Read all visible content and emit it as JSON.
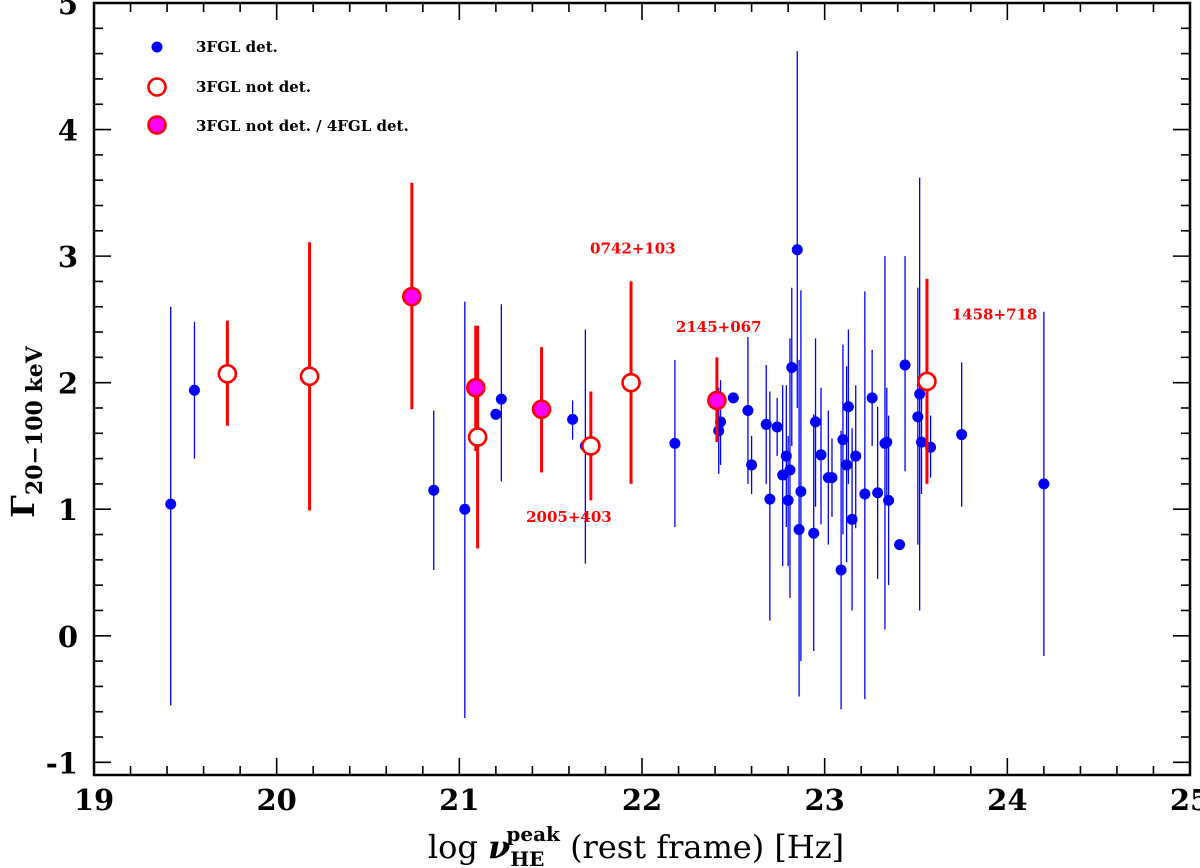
{
  "chart_data": {
    "type": "scatter",
    "xlabel": "log ν_HE^peak (rest frame) [Hz]",
    "xlabel_parts": {
      "prefix": "log ",
      "symbol": "ν",
      "sub": "HE",
      "sup": "peak",
      "suffix": " (rest frame) [Hz]"
    },
    "ylabel": "Γ20−100 keV",
    "ylabel_parts": {
      "symbol": "Γ",
      "sub": "20−100 keV"
    },
    "xlim": [
      19,
      25
    ],
    "ylim": [
      -1.1,
      5.0
    ],
    "x_ticks": [
      19,
      20,
      21,
      22,
      23,
      24,
      25
    ],
    "x_tick_labels": [
      "19",
      "20",
      "21",
      "22",
      "23",
      "24",
      "25"
    ],
    "y_ticks": [
      -1,
      0,
      1,
      2,
      3,
      4,
      5
    ],
    "y_tick_labels": [
      "-1",
      "0",
      "1",
      "2",
      "3",
      "4",
      "5"
    ],
    "legend": {
      "placement": "top-left",
      "entries": [
        {
          "label": "3FGL det.",
          "series": "det"
        },
        {
          "label": "3FGL not det.",
          "series": "notdet"
        },
        {
          "label": "3FGL not det. / 4FGL det.",
          "series": "notdet4fgl"
        }
      ]
    },
    "annotations": [
      {
        "text": "0742+103",
        "x": 21.95,
        "y": 3.02
      },
      {
        "text": "2145+067",
        "x": 22.42,
        "y": 2.4
      },
      {
        "text": "1458+718",
        "x": 23.93,
        "y": 2.5
      },
      {
        "text": "2005+403",
        "x": 21.6,
        "y": 0.9
      }
    ],
    "series": [
      {
        "name": "3FGL det.",
        "key": "det",
        "color": "#0000ff",
        "points": [
          {
            "x": 19.42,
            "y": 1.04,
            "lo": -0.55,
            "hi": 2.6
          },
          {
            "x": 19.55,
            "y": 1.94,
            "lo": 1.4,
            "hi": 2.48
          },
          {
            "x": 20.86,
            "y": 1.15,
            "lo": 0.52,
            "hi": 1.78
          },
          {
            "x": 21.03,
            "y": 1.0,
            "lo": -0.65,
            "hi": 2.64
          },
          {
            "x": 21.2,
            "y": 1.75,
            "lo": 1.72,
            "hi": 1.78
          },
          {
            "x": 21.23,
            "y": 1.87,
            "lo": 1.22,
            "hi": 2.62
          },
          {
            "x": 21.62,
            "y": 1.71,
            "lo": 1.55,
            "hi": 1.86
          },
          {
            "x": 21.69,
            "y": 1.5,
            "lo": 0.57,
            "hi": 2.42
          },
          {
            "x": 22.18,
            "y": 1.52,
            "lo": 0.86,
            "hi": 2.18
          },
          {
            "x": 22.42,
            "y": 1.62,
            "lo": 1.28,
            "hi": 1.96
          },
          {
            "x": 22.43,
            "y": 1.69,
            "lo": 1.35,
            "hi": 2.02
          },
          {
            "x": 22.5,
            "y": 1.88,
            "lo": 1.84,
            "hi": 1.92
          },
          {
            "x": 22.58,
            "y": 1.78,
            "lo": 1.2,
            "hi": 2.36
          },
          {
            "x": 22.6,
            "y": 1.35,
            "lo": 1.12,
            "hi": 1.58
          },
          {
            "x": 22.68,
            "y": 1.67,
            "lo": 1.2,
            "hi": 2.14
          },
          {
            "x": 22.7,
            "y": 1.08,
            "lo": 0.12,
            "hi": 1.93
          },
          {
            "x": 22.74,
            "y": 1.65,
            "lo": 1.42,
            "hi": 1.88
          },
          {
            "x": 22.77,
            "y": 1.27,
            "lo": 0.55,
            "hi": 1.98
          },
          {
            "x": 22.79,
            "y": 1.42,
            "lo": 0.86,
            "hi": 1.98
          },
          {
            "x": 22.8,
            "y": 1.07,
            "lo": 0.55,
            "hi": 1.58
          },
          {
            "x": 22.81,
            "y": 1.31,
            "lo": 0.3,
            "hi": 2.35
          },
          {
            "x": 22.82,
            "y": 2.12,
            "lo": 1.5,
            "hi": 2.75
          },
          {
            "x": 22.85,
            "y": 3.05,
            "lo": 1.8,
            "hi": 4.62
          },
          {
            "x": 22.86,
            "y": 0.84,
            "lo": -0.48,
            "hi": 2.18
          },
          {
            "x": 22.87,
            "y": 1.14,
            "lo": -0.2,
            "hi": 2.73
          },
          {
            "x": 22.94,
            "y": 0.81,
            "lo": -0.12,
            "hi": 1.75
          },
          {
            "x": 22.95,
            "y": 1.69,
            "lo": 1.02,
            "hi": 2.35
          },
          {
            "x": 22.98,
            "y": 1.43,
            "lo": 0.88,
            "hi": 1.96
          },
          {
            "x": 23.02,
            "y": 1.25,
            "lo": 0.72,
            "hi": 1.78
          },
          {
            "x": 23.04,
            "y": 1.25,
            "lo": 0.94,
            "hi": 1.56
          },
          {
            "x": 23.09,
            "y": 0.52,
            "lo": -0.58,
            "hi": 1.62
          },
          {
            "x": 23.1,
            "y": 1.55,
            "lo": 0.8,
            "hi": 2.3
          },
          {
            "x": 23.12,
            "y": 1.35,
            "lo": 0.58,
            "hi": 2.13
          },
          {
            "x": 23.13,
            "y": 1.81,
            "lo": 1.2,
            "hi": 2.42
          },
          {
            "x": 23.15,
            "y": 0.92,
            "lo": 0.2,
            "hi": 1.64
          },
          {
            "x": 23.17,
            "y": 1.42,
            "lo": 0.85,
            "hi": 1.98
          },
          {
            "x": 23.22,
            "y": 1.12,
            "lo": -0.5,
            "hi": 2.72
          },
          {
            "x": 23.26,
            "y": 1.88,
            "lo": 1.5,
            "hi": 2.26
          },
          {
            "x": 23.29,
            "y": 1.13,
            "lo": 0.45,
            "hi": 1.81
          },
          {
            "x": 23.33,
            "y": 1.52,
            "lo": 0.05,
            "hi": 3.0
          },
          {
            "x": 23.34,
            "y": 1.53,
            "lo": 1.1,
            "hi": 1.96
          },
          {
            "x": 23.35,
            "y": 1.07,
            "lo": 0.4,
            "hi": 1.74
          },
          {
            "x": 23.41,
            "y": 0.72,
            "lo": 0.68,
            "hi": 0.76
          },
          {
            "x": 23.44,
            "y": 2.14,
            "lo": 1.3,
            "hi": 3.0
          },
          {
            "x": 23.51,
            "y": 1.73,
            "lo": 0.72,
            "hi": 2.75
          },
          {
            "x": 23.52,
            "y": 1.91,
            "lo": 0.2,
            "hi": 3.62
          },
          {
            "x": 23.53,
            "y": 1.53,
            "lo": 1.12,
            "hi": 1.96
          },
          {
            "x": 23.58,
            "y": 1.49,
            "lo": 1.25,
            "hi": 1.74
          },
          {
            "x": 23.75,
            "y": 1.59,
            "lo": 1.02,
            "hi": 2.16
          },
          {
            "x": 24.2,
            "y": 1.2,
            "lo": -0.16,
            "hi": 2.56
          }
        ]
      },
      {
        "name": "3FGL not det.",
        "key": "notdet",
        "color": "#ff0000",
        "points": [
          {
            "x": 19.73,
            "y": 2.07,
            "lo": 1.66,
            "hi": 2.49
          },
          {
            "x": 20.18,
            "y": 2.05,
            "lo": 0.99,
            "hi": 3.11
          },
          {
            "x": 21.1,
            "y": 1.57,
            "lo": 0.69,
            "hi": 2.45
          },
          {
            "x": 21.72,
            "y": 1.5,
            "lo": 1.07,
            "hi": 1.93
          },
          {
            "x": 21.94,
            "y": 2.0,
            "lo": 1.2,
            "hi": 2.8
          },
          {
            "x": 23.56,
            "y": 2.01,
            "lo": 1.2,
            "hi": 2.82
          }
        ]
      },
      {
        "name": "3FGL not det. / 4FGL det.",
        "key": "notdet4fgl",
        "color": "#ff00ff",
        "points": [
          {
            "x": 20.74,
            "y": 2.68,
            "lo": 1.79,
            "hi": 3.58
          },
          {
            "x": 21.09,
            "y": 1.96,
            "lo": 1.46,
            "hi": 2.45
          },
          {
            "x": 21.45,
            "y": 1.79,
            "lo": 1.29,
            "hi": 2.28
          },
          {
            "x": 22.41,
            "y": 1.86,
            "lo": 1.53,
            "hi": 2.2
          }
        ]
      }
    ]
  }
}
